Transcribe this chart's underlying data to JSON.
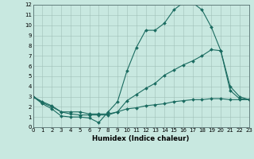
{
  "xlabel": "Humidex (Indice chaleur)",
  "bg_color": "#c8e8e0",
  "grid_color": "#a0c0b8",
  "line_color": "#1a6b60",
  "xlim": [
    0,
    23
  ],
  "ylim": [
    0,
    12
  ],
  "xticks": [
    0,
    1,
    2,
    3,
    4,
    5,
    6,
    7,
    8,
    9,
    10,
    11,
    12,
    13,
    14,
    15,
    16,
    17,
    18,
    19,
    20,
    21,
    22,
    23
  ],
  "yticks": [
    0,
    1,
    2,
    3,
    4,
    5,
    6,
    7,
    8,
    9,
    10,
    11,
    12
  ],
  "line1_x": [
    0,
    1,
    2,
    3,
    4,
    5,
    6,
    7,
    8,
    9,
    10,
    11,
    12,
    13,
    14,
    15,
    16,
    17,
    18,
    19,
    20,
    21,
    22,
    23
  ],
  "line1_y": [
    3.0,
    2.3,
    1.8,
    1.1,
    1.0,
    1.0,
    0.9,
    0.45,
    1.5,
    2.5,
    5.5,
    7.8,
    9.5,
    9.5,
    10.2,
    11.5,
    12.2,
    12.2,
    11.5,
    9.8,
    7.5,
    3.6,
    2.8,
    2.7
  ],
  "line2_x": [
    0,
    1,
    2,
    3,
    4,
    5,
    6,
    7,
    8,
    9,
    10,
    11,
    12,
    13,
    14,
    15,
    16,
    17,
    18,
    19,
    20,
    21,
    22,
    23
  ],
  "line2_y": [
    3.0,
    2.5,
    2.1,
    1.5,
    1.3,
    1.2,
    1.2,
    1.2,
    1.2,
    1.5,
    2.6,
    3.2,
    3.8,
    4.3,
    5.1,
    5.6,
    6.1,
    6.5,
    7.0,
    7.6,
    7.5,
    4.0,
    3.0,
    2.7
  ],
  "line3_x": [
    0,
    1,
    2,
    3,
    4,
    5,
    6,
    7,
    8,
    9,
    10,
    11,
    12,
    13,
    14,
    15,
    16,
    17,
    18,
    19,
    20,
    21,
    22,
    23
  ],
  "line3_y": [
    3.0,
    2.4,
    2.0,
    1.5,
    1.5,
    1.5,
    1.3,
    1.3,
    1.3,
    1.5,
    1.8,
    1.9,
    2.1,
    2.2,
    2.3,
    2.5,
    2.6,
    2.7,
    2.7,
    2.8,
    2.8,
    2.7,
    2.7,
    2.7
  ]
}
